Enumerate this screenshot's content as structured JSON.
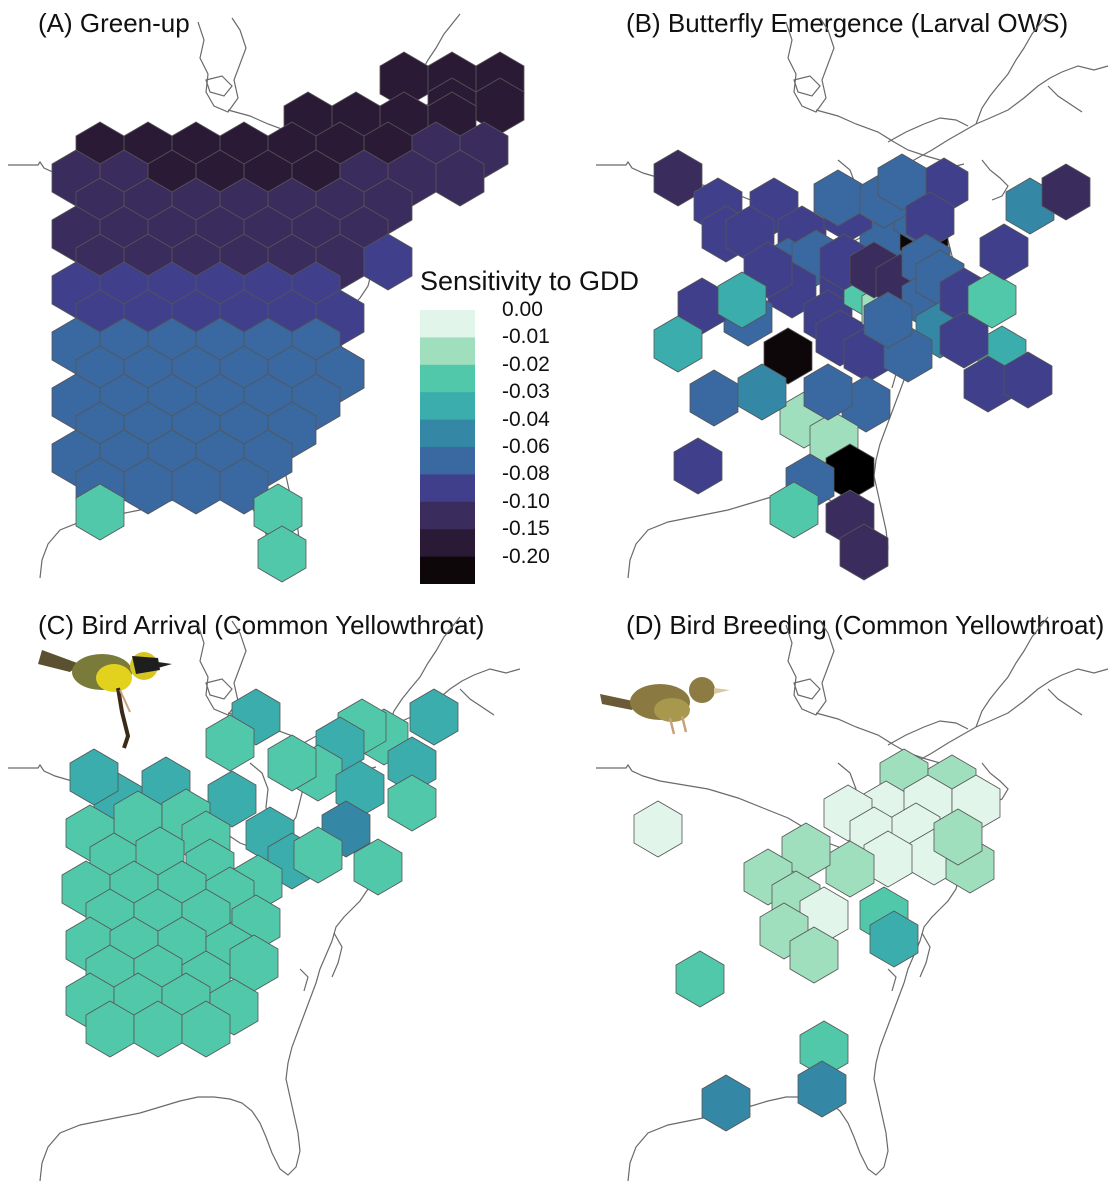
{
  "panels": [
    {
      "id": "A",
      "title": "(A) Green-up"
    },
    {
      "id": "B",
      "title": "(B) Butterfly Emergence (Larval OWS)"
    },
    {
      "id": "C",
      "title": "(C) Bird Arrival (Common Yellowthroat)"
    },
    {
      "id": "D",
      "title": "(D) Bird Breeding (Common Yellowthroat)"
    }
  ],
  "legend": {
    "title": "Sensitivity to GDD",
    "labels": [
      "0.00",
      "-0.01",
      "-0.02",
      "-0.03",
      "-0.04",
      "-0.06",
      "-0.08",
      "-0.10",
      "-0.15",
      "-0.20"
    ],
    "colors": [
      "#e1f5ea",
      "#a0dfbd",
      "#52c8ab",
      "#3aadac",
      "#3488a6",
      "#3a68a0",
      "#403f8b",
      "#3b2c5e",
      "#2b1a36",
      "#0e0709"
    ]
  },
  "colors": {
    "coastline": "#6a6a6a",
    "hex_border": "#555555"
  },
  "icons": [
    "common-yellowthroat-adult-male",
    "common-yellowthroat-juvenile"
  ]
}
